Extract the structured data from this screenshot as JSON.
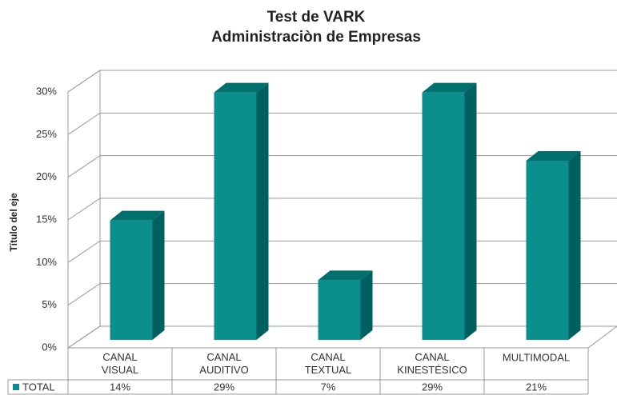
{
  "chart_data": {
    "type": "bar3d",
    "title": "Test de VARK",
    "subtitle": "Administraciòn de Empresas",
    "y_axis_label": "Título del eje",
    "categories": [
      "CANAL VISUAL",
      "CANAL AUDITIVO",
      "CANAL TEXTUAL",
      "CANAL KINESTÉSICO",
      "MULTIMODAL"
    ],
    "series": [
      {
        "name": "TOTAL",
        "color": "#0b8e8e",
        "values": [
          14,
          29,
          7,
          29,
          21
        ],
        "value_labels": [
          "14%",
          "29%",
          "7%",
          "29%",
          "21%"
        ]
      }
    ],
    "ylim": [
      0,
      30
    ],
    "yticks": [
      {
        "value": 0,
        "label": "0%"
      },
      {
        "value": 5,
        "label": "5%"
      },
      {
        "value": 10,
        "label": "10%"
      },
      {
        "value": 15,
        "label": "15%"
      },
      {
        "value": 20,
        "label": "20%"
      },
      {
        "value": 25,
        "label": "25%"
      },
      {
        "value": 30,
        "label": "30%"
      }
    ],
    "grid": true
  }
}
